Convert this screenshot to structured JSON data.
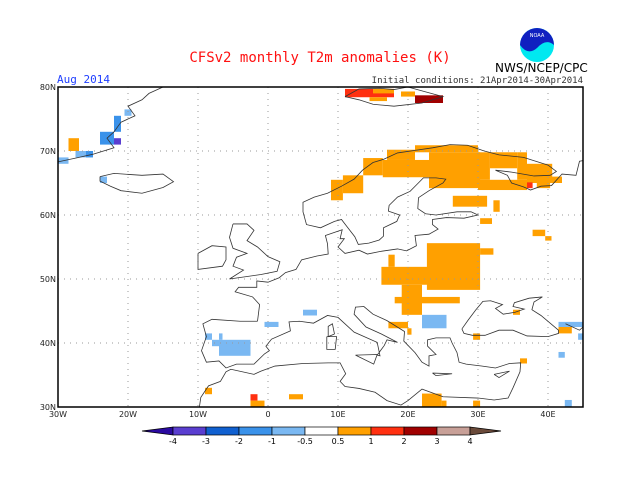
{
  "header": {
    "title": "CFSv2 monthly T2m anomalies (K)",
    "agency": "NWS/NCEP/CPC",
    "logo_text": "NOAA",
    "month": "Aug 2014",
    "initial_conditions": "Initial conditions: 21Apr2014-30Apr2014"
  },
  "map": {
    "lon_range": [
      -30,
      45
    ],
    "lat_range": [
      30,
      80
    ],
    "lon_ticks": [
      {
        "v": -30,
        "label": "30W"
      },
      {
        "v": -20,
        "label": "20W"
      },
      {
        "v": -10,
        "label": "10W"
      },
      {
        "v": 0,
        "label": "0"
      },
      {
        "v": 10,
        "label": "10E"
      },
      {
        "v": 20,
        "label": "20E"
      },
      {
        "v": 30,
        "label": "30E"
      },
      {
        "v": 40,
        "label": "40E"
      }
    ],
    "lat_ticks": [
      {
        "v": 30,
        "label": "30N"
      },
      {
        "v": 40,
        "label": "40N"
      },
      {
        "v": 50,
        "label": "50N"
      },
      {
        "v": 60,
        "label": "60N"
      },
      {
        "v": 70,
        "label": "70N"
      },
      {
        "v": 80,
        "label": "80N"
      }
    ],
    "anomaly_cells": [
      [
        -20.5,
        75.5,
        -19.5,
        76.5,
        "c4"
      ],
      [
        -22,
        73,
        -21,
        75.5,
        "c3"
      ],
      [
        -24,
        71,
        -22,
        73,
        "c3"
      ],
      [
        -22,
        71,
        -21,
        72,
        "c1"
      ],
      [
        -28.5,
        70,
        -27,
        72,
        "c6"
      ],
      [
        -27.5,
        69,
        -25,
        70,
        "c4"
      ],
      [
        -26,
        69,
        -25,
        70,
        "c3"
      ],
      [
        -30,
        68,
        -28.5,
        69,
        "c4"
      ],
      [
        -24,
        65,
        -23,
        66,
        "c4"
      ],
      [
        -7,
        38,
        -2.5,
        40.5,
        "c4"
      ],
      [
        -9,
        40.5,
        -8,
        41.5,
        "c4"
      ],
      [
        -8,
        39.5,
        -7,
        40.5,
        "c4"
      ],
      [
        -7,
        40.5,
        -6.5,
        41.5,
        "c4"
      ],
      [
        -0.5,
        42.5,
        1.5,
        43.3,
        "c4"
      ],
      [
        5,
        44.3,
        7,
        45.2,
        "c4"
      ],
      [
        -9,
        32,
        -8,
        33,
        "c6"
      ],
      [
        -2.5,
        31,
        -1.5,
        32,
        "c7"
      ],
      [
        -2.5,
        30,
        -0.5,
        31,
        "c6"
      ],
      [
        3,
        31.2,
        5,
        32,
        "c6"
      ],
      [
        9,
        62.3,
        10.7,
        65.5,
        "c6"
      ],
      [
        10.7,
        63.4,
        13.6,
        66.2,
        "c6"
      ],
      [
        13.6,
        66.2,
        16.4,
        68.9,
        "c6"
      ],
      [
        17,
        68.6,
        21,
        70.2,
        "c6"
      ],
      [
        21,
        69.8,
        30,
        70.9,
        "c6"
      ],
      [
        23,
        64.2,
        30.3,
        69.8,
        "c6"
      ],
      [
        16.4,
        65.9,
        23,
        68.6,
        "c6"
      ],
      [
        30,
        63.9,
        37,
        65.5,
        "c6"
      ],
      [
        30,
        65.5,
        31.7,
        69.8,
        "c6"
      ],
      [
        35.6,
        65.5,
        37,
        69.8,
        "c6"
      ],
      [
        31.7,
        67.3,
        35.6,
        69.8,
        "c6"
      ],
      [
        37,
        65.9,
        40.6,
        68,
        "c6"
      ],
      [
        37,
        65,
        42,
        66,
        "c6"
      ],
      [
        38.4,
        64.2,
        40.3,
        65,
        "c6"
      ],
      [
        37,
        64.2,
        37.8,
        65.1,
        "c7"
      ],
      [
        26.4,
        61.3,
        31.3,
        63,
        "c6"
      ],
      [
        32.2,
        60.5,
        33.1,
        62.3,
        "c6"
      ],
      [
        30.3,
        58.6,
        32,
        59.5,
        "c6"
      ],
      [
        37.8,
        56.7,
        39.6,
        57.7,
        "c6"
      ],
      [
        39.6,
        56,
        40.5,
        56.7,
        "c6"
      ],
      [
        11,
        78.4,
        18,
        79.7,
        "c7"
      ],
      [
        15,
        79,
        18,
        79.7,
        "c6"
      ],
      [
        14.5,
        77.8,
        17,
        78.4,
        "c6"
      ],
      [
        21,
        77.5,
        25,
        78.7,
        "c8"
      ],
      [
        19,
        78.5,
        21,
        79.3,
        "c6"
      ],
      [
        22.7,
        48.3,
        30.3,
        55.6,
        "c6"
      ],
      [
        30.3,
        53.8,
        32.2,
        54.8,
        "c6"
      ],
      [
        16.2,
        49.1,
        24.6,
        51.9,
        "c6"
      ],
      [
        17.2,
        51.9,
        18.1,
        53.8,
        "c6"
      ],
      [
        19.1,
        44.4,
        22,
        49.1,
        "c6"
      ],
      [
        18.1,
        46.2,
        27.4,
        47.2,
        "c6"
      ],
      [
        17.2,
        42.3,
        20,
        43.3,
        "c6"
      ],
      [
        19.9,
        41.3,
        20.5,
        42.3,
        "c6"
      ],
      [
        22,
        42.3,
        25.5,
        44.4,
        "c4"
      ],
      [
        35,
        44.4,
        36,
        45.2,
        "c6"
      ],
      [
        29.3,
        40.5,
        30.3,
        41.5,
        "c6"
      ],
      [
        36,
        36.8,
        37,
        37.6,
        "c6"
      ],
      [
        22,
        30,
        24.8,
        32.1,
        "c6"
      ],
      [
        24.8,
        30,
        25.5,
        31,
        "c6"
      ],
      [
        29.3,
        30,
        30.3,
        31,
        "c6"
      ],
      [
        41.5,
        42.5,
        45,
        43.3,
        "c4"
      ],
      [
        41.5,
        41.5,
        43.4,
        42.5,
        "c6"
      ],
      [
        44.3,
        40.5,
        45,
        41.5,
        "c4"
      ],
      [
        41.5,
        37.7,
        42.4,
        38.6,
        "c4"
      ],
      [
        42.4,
        30,
        43.4,
        31.1,
        "c4"
      ]
    ]
  },
  "colorbar": {
    "labels": [
      "-4",
      "-3",
      "-2",
      "-1",
      "-0.5",
      "0.5",
      "1",
      "2",
      "3",
      "4"
    ],
    "colors": {
      "c0": "#2a0aa0",
      "c1": "#5a3ed0",
      "c2": "#1060d0",
      "c3": "#3a92ea",
      "c4": "#7ab8f2",
      "c5": "#ffffff",
      "c6": "#ffa000",
      "c7": "#ff3010",
      "c8": "#a00000",
      "c9": "#c8a098",
      "c10": "#6a4a3a"
    }
  }
}
